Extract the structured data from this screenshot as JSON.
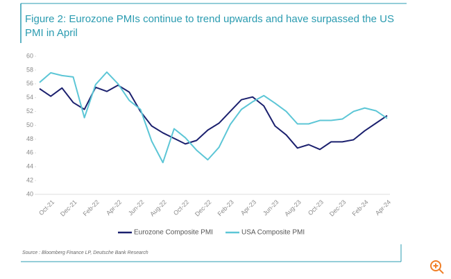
{
  "chart_data": {
    "type": "line",
    "title": "Figure 2: Eurozone PMIs continue to trend upwards and have surpassed the US PMI in April",
    "categories": [
      null,
      "Oct-21",
      null,
      "Dec-21",
      null,
      "Feb-22",
      null,
      "Apr-22",
      null,
      "Jun-22",
      null,
      "Aug-22",
      null,
      "Oct-22",
      null,
      "Dec-22",
      null,
      "Feb-23",
      null,
      "Apr-23",
      null,
      "Jun-23",
      null,
      "Aug-23",
      null,
      "Oct-23",
      null,
      "Dec-23",
      null,
      "Feb-24",
      null,
      "Apr-24"
    ],
    "series": [
      {
        "name": "Eurozone Composite PMI",
        "color": "#1b206e",
        "values": [
          55.3,
          54.2,
          55.4,
          53.3,
          52.3,
          55.5,
          54.9,
          55.8,
          54.8,
          52.0,
          49.9,
          48.9,
          48.1,
          47.3,
          47.8,
          49.3,
          50.3,
          52.0,
          53.7,
          54.1,
          52.8,
          49.9,
          48.6,
          46.7,
          47.2,
          46.5,
          47.6,
          47.6,
          47.9,
          49.2,
          50.3,
          51.4
        ]
      },
      {
        "name": "USA Composite PMI",
        "color": "#5cc6d6",
        "values": [
          56.2,
          57.6,
          57.2,
          57.0,
          51.1,
          55.9,
          57.7,
          56.0,
          53.6,
          52.3,
          47.7,
          44.6,
          49.5,
          48.2,
          46.4,
          45.0,
          46.8,
          50.1,
          52.3,
          53.4,
          54.3,
          53.2,
          52.0,
          50.2,
          50.2,
          50.7,
          50.7,
          50.9,
          52.0,
          52.5,
          52.1,
          51.0
        ]
      }
    ],
    "ylim": [
      40,
      60
    ],
    "yticks": [
      40,
      42,
      44,
      46,
      48,
      50,
      52,
      54,
      56,
      58,
      60
    ],
    "source": "Source : Bloomberg Finance LP, Deutsche Bank Research"
  }
}
